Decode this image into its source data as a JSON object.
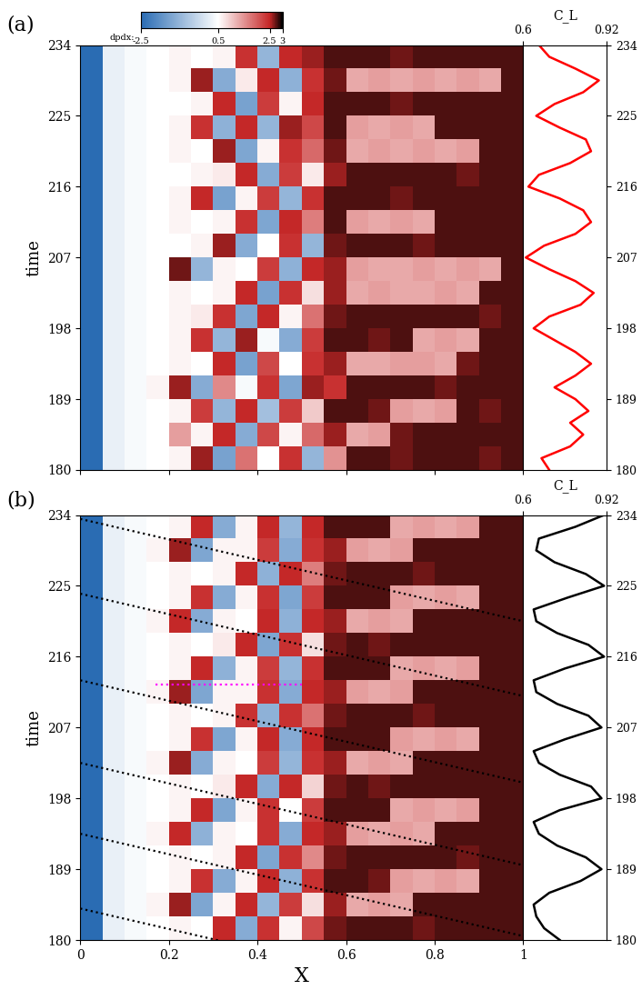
{
  "colorbar": {
    "label": "dpdx:",
    "range": [
      -2.5,
      3
    ],
    "ticks": [
      -2.5,
      0.5,
      2.5,
      3
    ]
  },
  "chart_data": [
    {
      "type": "heatmap",
      "title": "(a)",
      "xlim": [
        0,
        1
      ],
      "xticks": [
        0,
        0.2,
        0.4,
        0.6,
        0.8,
        1
      ],
      "tick_labels": "y",
      "ylabel": "time",
      "ylim": [
        180,
        234
      ],
      "yticks": [
        180,
        189,
        198,
        207,
        216,
        225,
        234
      ],
      "x": [
        0.025,
        0.075,
        0.125,
        0.175,
        0.225,
        0.275,
        0.325,
        0.375,
        0.425,
        0.475,
        0.525,
        0.575,
        0.625,
        0.675,
        0.725,
        0.775,
        0.825,
        0.875,
        0.925,
        0.975
      ],
      "y": [
        181.5,
        184.5,
        187.5,
        190.5,
        193.5,
        196.5,
        199.5,
        202.5,
        205.5,
        208.5,
        211.5,
        214.5,
        217.5,
        220.5,
        223.5,
        226.5,
        229.5,
        232.5
      ],
      "cells": [
        [
          -2.5,
          0.2,
          0.4,
          0.5,
          0.6,
          2.6,
          -1.4,
          1.8,
          0.5,
          2.4,
          -1.0,
          1.5,
          2.8,
          2.8,
          2.7,
          2.8,
          2.8,
          2.8,
          2.7,
          2.8
        ],
        [
          -2.5,
          0.2,
          0.4,
          0.5,
          1.4,
          0.6,
          2.5,
          -1.2,
          2.2,
          0.6,
          1.9,
          2.6,
          1.3,
          1.4,
          2.7,
          2.8,
          2.8,
          2.8,
          2.8,
          2.8
        ],
        [
          -2.5,
          0.2,
          0.4,
          0.5,
          0.6,
          2.3,
          -1.0,
          2.5,
          -0.8,
          2.3,
          1.0,
          2.8,
          2.8,
          2.7,
          1.4,
          1.3,
          1.4,
          2.8,
          2.7,
          2.8
        ],
        [
          -2.5,
          0.2,
          0.4,
          0.6,
          2.6,
          -1.2,
          1.6,
          0.4,
          2.4,
          -1.3,
          2.6,
          2.4,
          2.8,
          2.8,
          2.8,
          2.8,
          2.7,
          2.8,
          2.8,
          2.8
        ],
        [
          -2.5,
          0.2,
          0.4,
          0.5,
          0.6,
          0.5,
          2.5,
          -1.4,
          2.2,
          0.5,
          2.4,
          2.6,
          1.3,
          1.3,
          1.4,
          1.4,
          1.3,
          2.7,
          2.8,
          2.8
        ],
        [
          -2.5,
          0.2,
          0.4,
          0.5,
          0.6,
          2.4,
          -1.0,
          2.6,
          0.4,
          -1.2,
          2.3,
          2.8,
          2.8,
          2.7,
          2.8,
          1.3,
          1.4,
          1.3,
          2.8,
          2.8
        ],
        [
          -2.5,
          0.2,
          0.4,
          0.5,
          0.6,
          0.7,
          2.4,
          -1.3,
          2.5,
          0.6,
          1.8,
          2.7,
          2.8,
          2.8,
          2.8,
          2.8,
          2.8,
          2.8,
          2.7,
          2.8
        ],
        [
          -2.5,
          0.2,
          0.4,
          0.5,
          0.6,
          0.5,
          0.6,
          2.5,
          -1.4,
          2.4,
          0.8,
          2.6,
          1.3,
          1.4,
          1.3,
          1.3,
          1.4,
          1.3,
          2.8,
          2.8
        ],
        [
          -2.5,
          0.2,
          0.4,
          0.5,
          2.7,
          -1.0,
          0.6,
          0.5,
          2.3,
          -1.1,
          2.5,
          2.6,
          1.4,
          1.3,
          1.3,
          1.4,
          1.3,
          1.4,
          1.3,
          2.8
        ],
        [
          -2.5,
          0.2,
          0.4,
          0.5,
          0.5,
          0.6,
          2.6,
          -1.2,
          0.5,
          2.4,
          -1.0,
          2.7,
          2.8,
          2.8,
          2.8,
          2.7,
          2.8,
          2.8,
          2.8,
          2.8
        ],
        [
          -2.5,
          0.2,
          0.4,
          0.5,
          0.6,
          0.5,
          0.6,
          2.4,
          -1.3,
          2.5,
          1.7,
          2.8,
          1.4,
          1.3,
          1.4,
          1.3,
          2.8,
          2.8,
          2.8,
          2.8
        ],
        [
          -2.5,
          0.2,
          0.4,
          0.5,
          0.6,
          2.5,
          -1.4,
          0.6,
          2.3,
          -1.0,
          2.4,
          2.8,
          2.8,
          2.8,
          2.7,
          2.8,
          2.8,
          2.8,
          2.8,
          2.8
        ],
        [
          -2.5,
          0.2,
          0.4,
          0.5,
          0.5,
          0.6,
          0.7,
          2.5,
          -1.2,
          2.3,
          0.7,
          2.6,
          2.8,
          2.8,
          2.8,
          2.8,
          2.8,
          2.7,
          2.8,
          2.8
        ],
        [
          -2.5,
          0.2,
          0.4,
          0.5,
          0.6,
          0.5,
          2.6,
          -1.3,
          0.6,
          2.4,
          1.9,
          2.7,
          1.3,
          1.4,
          1.3,
          1.4,
          1.3,
          1.4,
          2.8,
          2.8
        ],
        [
          -2.5,
          0.2,
          0.4,
          0.5,
          0.6,
          2.4,
          -1.1,
          2.5,
          -1.0,
          2.6,
          2.2,
          2.8,
          1.4,
          1.3,
          1.4,
          1.3,
          2.8,
          2.8,
          2.8,
          2.8
        ],
        [
          -2.5,
          0.2,
          0.4,
          0.5,
          0.5,
          0.6,
          2.5,
          -1.4,
          2.3,
          0.6,
          2.5,
          2.8,
          2.8,
          2.8,
          2.7,
          2.8,
          2.8,
          2.8,
          2.8,
          2.8
        ],
        [
          -2.5,
          0.2,
          0.4,
          0.5,
          0.6,
          2.6,
          -1.2,
          0.7,
          2.5,
          -1.1,
          2.4,
          2.7,
          1.3,
          1.4,
          1.3,
          1.4,
          1.3,
          1.4,
          1.3,
          2.8
        ],
        [
          -2.5,
          0.2,
          0.4,
          0.5,
          0.6,
          0.5,
          0.6,
          2.4,
          -1.0,
          2.5,
          2.6,
          2.8,
          2.8,
          2.8,
          2.7,
          2.8,
          2.8,
          2.8,
          2.8,
          2.8
        ]
      ],
      "lines": [],
      "side": {
        "type": "line",
        "xlabel": "C_L",
        "ylabel": "time",
        "xlim": [
          0.6,
          0.92
        ],
        "xticks": [
          0.6,
          0.92
        ],
        "color": "red",
        "time": [
          180,
          181.5,
          183,
          184.5,
          186,
          187.5,
          189,
          190.5,
          192,
          193.5,
          195,
          196.5,
          198,
          199.5,
          201,
          202.5,
          204,
          205.5,
          207,
          208.5,
          210,
          211.5,
          213,
          214.5,
          216,
          217.5,
          219,
          220.5,
          222,
          223.5,
          225,
          226.5,
          228,
          229.5,
          231,
          232.5,
          234
        ],
        "values": [
          0.7,
          0.67,
          0.78,
          0.83,
          0.78,
          0.85,
          0.8,
          0.72,
          0.8,
          0.86,
          0.8,
          0.72,
          0.64,
          0.7,
          0.82,
          0.87,
          0.8,
          0.7,
          0.61,
          0.68,
          0.8,
          0.86,
          0.83,
          0.74,
          0.62,
          0.66,
          0.78,
          0.86,
          0.84,
          0.74,
          0.65,
          0.72,
          0.83,
          0.89,
          0.8,
          0.7,
          0.66
        ]
      }
    },
    {
      "type": "heatmap",
      "title": "(b)",
      "xlabel": "X",
      "xlim": [
        0,
        1
      ],
      "xticks": [
        0,
        0.2,
        0.4,
        0.6,
        0.8,
        1
      ],
      "ylabel": "time",
      "ylim": [
        180,
        234
      ],
      "yticks": [
        180,
        189,
        198,
        207,
        216,
        225,
        234
      ],
      "x": [
        0.025,
        0.075,
        0.125,
        0.175,
        0.225,
        0.275,
        0.325,
        0.375,
        0.425,
        0.475,
        0.525,
        0.575,
        0.625,
        0.675,
        0.725,
        0.775,
        0.825,
        0.875,
        0.925,
        0.975
      ],
      "y": [
        181.5,
        184.5,
        187.5,
        190.5,
        193.5,
        196.5,
        199.5,
        202.5,
        205.5,
        208.5,
        211.5,
        214.5,
        217.5,
        220.5,
        223.5,
        226.5,
        229.5,
        232.5
      ],
      "cells": [
        [
          -2.5,
          0.2,
          0.4,
          0.5,
          0.6,
          0.5,
          2.5,
          -1.2,
          2.4,
          0.6,
          2.2,
          2.7,
          2.8,
          2.8,
          2.8,
          2.7,
          2.8,
          2.8,
          2.8,
          2.8
        ],
        [
          -2.5,
          0.2,
          0.4,
          0.6,
          2.6,
          -1.3,
          0.6,
          2.5,
          -1.0,
          2.3,
          0.8,
          2.6,
          1.3,
          1.4,
          1.3,
          2.8,
          2.8,
          2.8,
          2.8,
          2.8
        ],
        [
          -2.5,
          0.2,
          0.4,
          0.5,
          0.6,
          2.4,
          -1.2,
          0.6,
          2.5,
          -1.1,
          2.4,
          2.8,
          2.8,
          2.7,
          1.4,
          1.3,
          1.4,
          1.3,
          2.8,
          2.8
        ],
        [
          -2.5,
          0.2,
          0.4,
          0.5,
          0.6,
          0.5,
          0.6,
          2.5,
          -1.3,
          2.4,
          1.6,
          2.7,
          2.8,
          2.8,
          2.8,
          2.8,
          2.8,
          2.7,
          2.8,
          2.8
        ],
        [
          -2.5,
          0.2,
          0.4,
          0.6,
          2.5,
          -1.1,
          0.6,
          0.5,
          2.4,
          -1.2,
          2.5,
          2.6,
          1.4,
          1.3,
          1.4,
          1.3,
          2.8,
          2.8,
          2.8,
          2.8
        ],
        [
          -2.5,
          0.2,
          0.4,
          0.5,
          0.6,
          2.5,
          -1.3,
          0.6,
          2.4,
          0.5,
          2.3,
          2.8,
          2.8,
          2.8,
          1.3,
          1.4,
          1.3,
          1.4,
          2.8,
          2.8
        ],
        [
          -2.5,
          0.2,
          0.4,
          0.5,
          0.6,
          0.5,
          0.7,
          2.5,
          -1.2,
          2.5,
          0.9,
          2.7,
          2.8,
          2.7,
          2.8,
          2.8,
          2.8,
          2.8,
          2.8,
          2.8
        ],
        [
          -2.5,
          0.2,
          0.4,
          0.6,
          2.6,
          -1.2,
          0.6,
          0.5,
          2.3,
          -1.0,
          2.4,
          2.6,
          1.3,
          1.4,
          1.3,
          2.8,
          2.8,
          2.8,
          2.8,
          2.8
        ],
        [
          -2.5,
          0.2,
          0.4,
          0.5,
          0.6,
          2.4,
          -1.3,
          0.6,
          2.5,
          -1.2,
          2.5,
          2.8,
          2.8,
          2.8,
          1.4,
          1.3,
          1.4,
          1.3,
          2.8,
          2.8
        ],
        [
          -2.5,
          0.2,
          0.4,
          0.5,
          0.6,
          0.5,
          0.6,
          2.4,
          -1.1,
          2.4,
          1.8,
          2.7,
          2.8,
          2.8,
          2.8,
          2.7,
          2.8,
          2.8,
          2.8,
          2.8
        ],
        [
          -2.5,
          0.2,
          0.4,
          0.6,
          2.6,
          -1.3,
          0.6,
          0.6,
          2.4,
          -1.2,
          2.5,
          2.6,
          1.4,
          1.3,
          1.4,
          2.8,
          2.8,
          2.8,
          2.8,
          2.8
        ],
        [
          -2.5,
          0.2,
          0.4,
          0.5,
          0.6,
          2.5,
          -1.1,
          0.6,
          2.3,
          -1.0,
          2.4,
          2.8,
          2.8,
          2.8,
          1.3,
          1.4,
          1.3,
          1.4,
          2.8,
          2.8
        ],
        [
          -2.5,
          0.2,
          0.4,
          0.5,
          0.6,
          0.5,
          0.7,
          2.5,
          -1.3,
          2.4,
          0.8,
          2.7,
          2.8,
          2.7,
          2.8,
          2.8,
          2.8,
          2.8,
          2.8,
          2.8
        ],
        [
          -2.5,
          0.2,
          0.4,
          0.6,
          2.5,
          -1.2,
          0.6,
          0.5,
          2.5,
          -1.1,
          2.5,
          2.6,
          1.3,
          1.4,
          1.3,
          2.8,
          2.8,
          2.8,
          2.8,
          2.8
        ],
        [
          -2.5,
          0.2,
          0.4,
          0.5,
          0.6,
          2.4,
          -1.2,
          0.6,
          2.4,
          -1.3,
          2.3,
          2.8,
          2.8,
          2.8,
          1.4,
          1.3,
          1.4,
          1.3,
          2.8,
          2.8
        ],
        [
          -2.5,
          0.2,
          0.4,
          0.5,
          0.6,
          0.5,
          0.6,
          2.5,
          -1.1,
          2.5,
          1.7,
          2.7,
          2.8,
          2.8,
          2.8,
          2.7,
          2.8,
          2.8,
          2.8,
          2.8
        ],
        [
          -2.5,
          0.2,
          0.4,
          0.6,
          2.6,
          -1.3,
          0.6,
          0.6,
          2.3,
          -1.2,
          2.4,
          2.6,
          1.4,
          1.3,
          1.4,
          2.8,
          2.8,
          2.8,
          2.8,
          2.8
        ],
        [
          -2.5,
          0.2,
          0.4,
          0.5,
          0.6,
          2.5,
          -1.2,
          0.6,
          2.5,
          -1.0,
          2.5,
          2.8,
          2.8,
          2.8,
          1.3,
          1.4,
          1.3,
          1.4,
          2.8,
          2.8
        ]
      ],
      "lines": [
        {
          "x": [
            0,
            1
          ],
          "time": [
            184.0,
            171.0
          ],
          "color": "black"
        },
        {
          "x": [
            0,
            1
          ],
          "time": [
            193.5,
            180.5
          ],
          "color": "black"
        },
        {
          "x": [
            0,
            1
          ],
          "time": [
            202.5,
            189.5
          ],
          "color": "black"
        },
        {
          "x": [
            0,
            1
          ],
          "time": [
            213.0,
            200.0
          ],
          "color": "black"
        },
        {
          "x": [
            0,
            1
          ],
          "time": [
            224.0,
            211.0
          ],
          "color": "black"
        },
        {
          "x": [
            0,
            1
          ],
          "time": [
            233.5,
            220.5
          ],
          "color": "black"
        },
        {
          "x": [
            0.17,
            0.5
          ],
          "time": [
            212.5,
            212.5
          ],
          "color": "magenta"
        }
      ],
      "side": {
        "type": "line",
        "xlabel": "C_L",
        "ylabel": "time",
        "xlim": [
          0.6,
          0.92
        ],
        "xticks": [
          0.6,
          0.92
        ],
        "color": "black",
        "time": [
          180,
          181.5,
          183,
          184.5,
          186,
          187.5,
          189,
          190.5,
          192,
          193.5,
          195,
          196.5,
          198,
          199.5,
          201,
          202.5,
          204,
          205.5,
          207,
          208.5,
          210,
          211.5,
          213,
          214.5,
          216,
          217.5,
          219,
          220.5,
          222,
          223.5,
          225,
          226.5,
          228,
          229.5,
          231,
          232.5,
          234
        ],
        "values": [
          0.74,
          0.68,
          0.65,
          0.64,
          0.7,
          0.82,
          0.9,
          0.84,
          0.73,
          0.66,
          0.64,
          0.74,
          0.9,
          0.86,
          0.74,
          0.66,
          0.64,
          0.76,
          0.9,
          0.85,
          0.73,
          0.65,
          0.64,
          0.76,
          0.91,
          0.85,
          0.73,
          0.65,
          0.64,
          0.77,
          0.91,
          0.84,
          0.72,
          0.65,
          0.66,
          0.8,
          0.91
        ]
      }
    }
  ]
}
